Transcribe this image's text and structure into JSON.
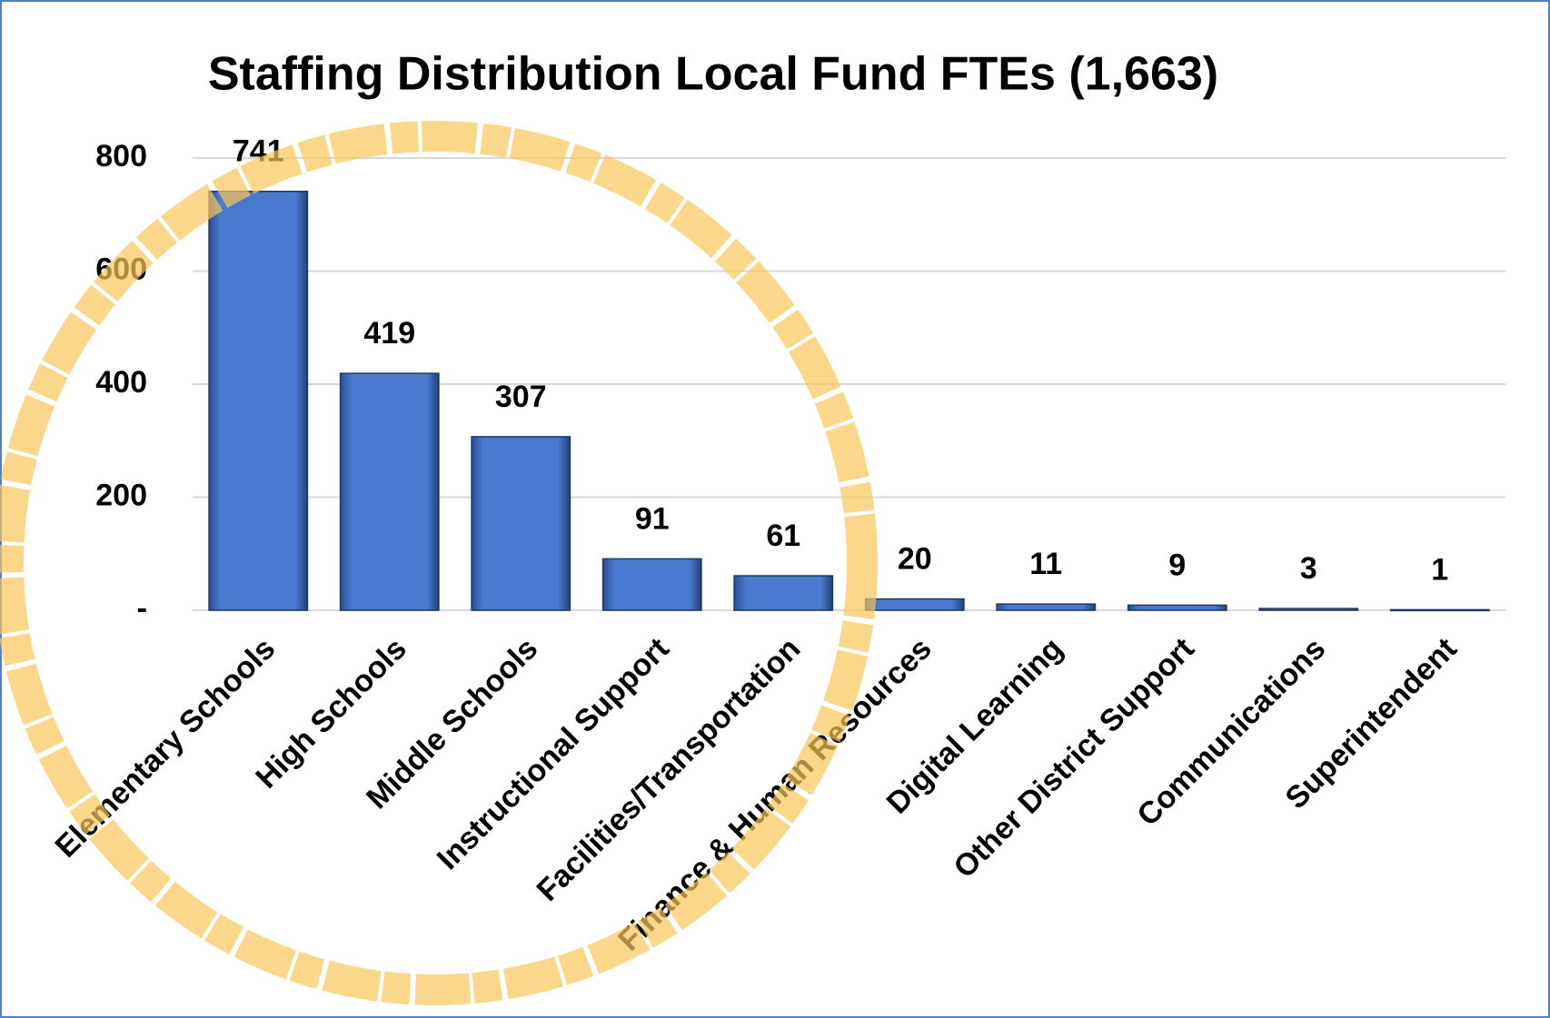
{
  "chart_data": {
    "type": "bar",
    "title": "Staffing Distribution Local Fund FTEs (1,663)",
    "categories": [
      "Elementary Schools",
      "High Schools",
      "Middle Schools",
      "Instructional Support",
      "Facilities/Transportation",
      "Finance & Human Resources",
      "Digital Learning",
      "Other District Support",
      "Communications",
      "Superintendent"
    ],
    "values": [
      741,
      419,
      307,
      91,
      61,
      20,
      11,
      9,
      3,
      1
    ],
    "color": "#4472c4",
    "ylim": [
      0,
      800
    ],
    "yticks": [
      {
        "value": 0,
        "label": "-"
      },
      200,
      400,
      600,
      800
    ],
    "grid": true
  }
}
